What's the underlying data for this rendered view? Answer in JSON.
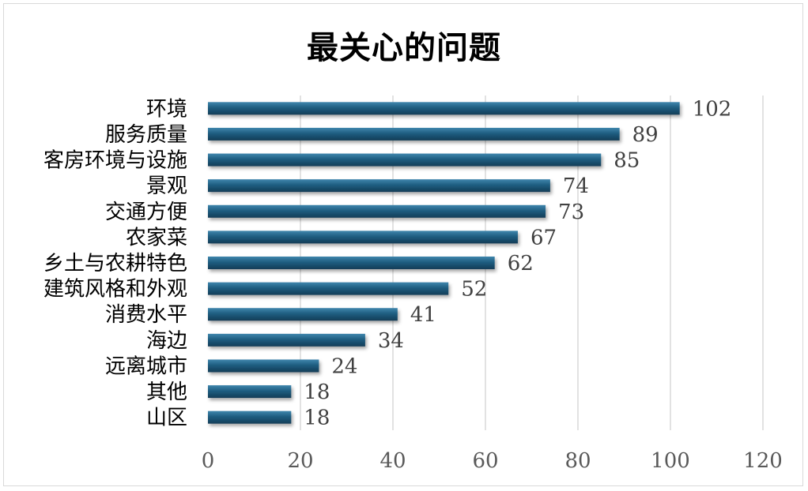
{
  "chart_data": {
    "type": "bar",
    "orientation": "horizontal",
    "title": "最关心的问题",
    "categories": [
      "环境",
      "服务质量",
      "客房环境与设施",
      "景观",
      "交通方便",
      "农家菜",
      "乡土与农耕特色",
      "建筑风格和外观",
      "消费水平",
      "海边",
      "远离城市",
      "其他",
      "山区"
    ],
    "values": [
      102,
      89,
      85,
      74,
      73,
      67,
      62,
      52,
      41,
      34,
      24,
      18,
      18
    ],
    "xticks": [
      0,
      20,
      40,
      60,
      80,
      100,
      120
    ],
    "xlim": [
      0,
      120
    ],
    "grid": "vertical",
    "data_labels": true,
    "bar_color": "#1f5d80"
  }
}
